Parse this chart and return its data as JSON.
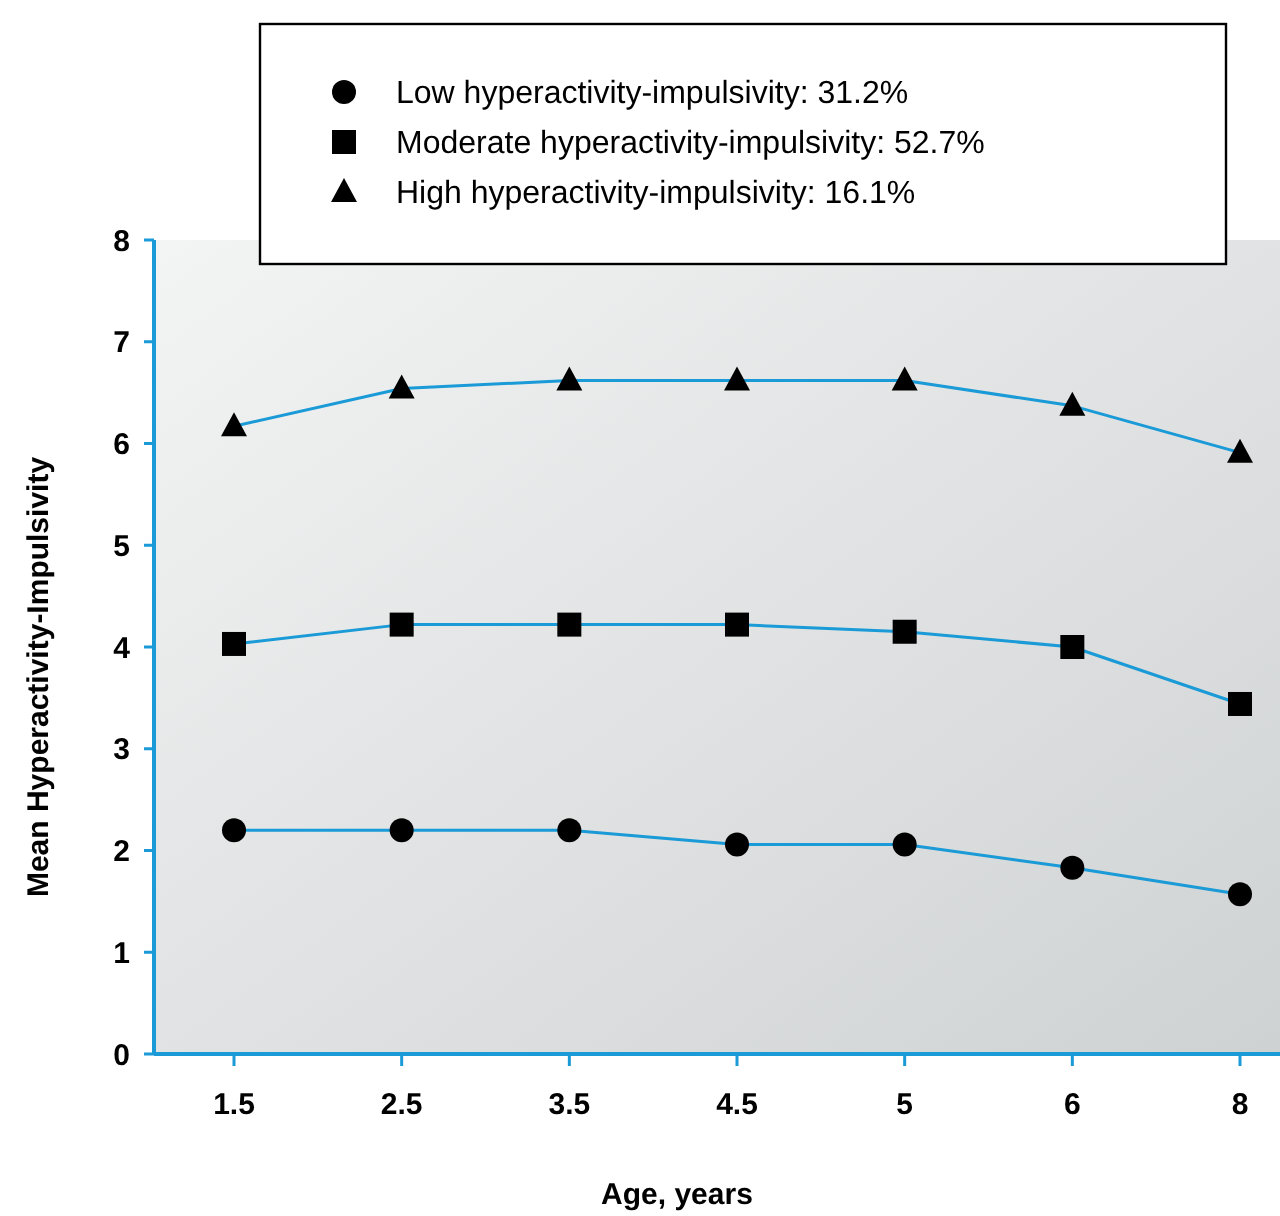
{
  "chart_data": {
    "type": "line",
    "xlabel": "Age, years",
    "ylabel": "Mean Hyperactivity-Impulsivity",
    "categories": [
      "1.5",
      "2.5",
      "3.5",
      "4.5",
      "5",
      "6",
      "8"
    ],
    "ylim": [
      0,
      8
    ],
    "yticks": [
      0,
      1,
      2,
      3,
      4,
      5,
      6,
      7,
      8
    ],
    "grid": false,
    "legend": "top",
    "line_style": "solid",
    "series": [
      {
        "name": "Low hyperactivity-impulsivity: 31.2%",
        "color": "#1a9ad6",
        "marker": "circle",
        "values": [
          2.2,
          2.2,
          2.2,
          2.06,
          2.06,
          1.83,
          1.57
        ]
      },
      {
        "name": "Moderate hyperactivity-impulsivity: 52.7%",
        "color": "#1a9ad6",
        "marker": "square",
        "values": [
          4.03,
          4.22,
          4.22,
          4.22,
          4.15,
          4.0,
          3.44
        ]
      },
      {
        "name": "High hyperactivity-impulsivity: 16.1%",
        "color": "#1a9ad6",
        "marker": "triangle",
        "values": [
          6.17,
          6.54,
          6.62,
          6.62,
          6.62,
          6.37,
          5.91
        ]
      }
    ]
  }
}
